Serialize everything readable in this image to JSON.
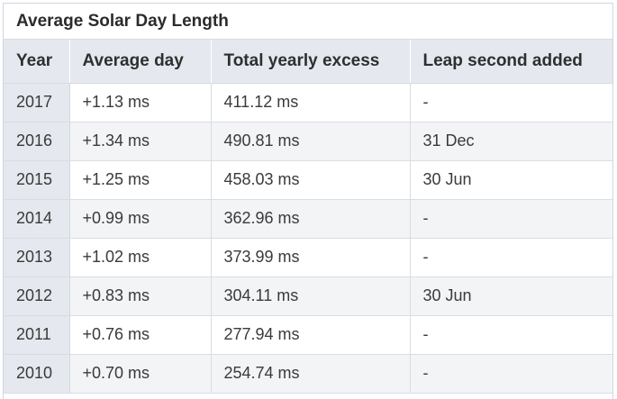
{
  "table": {
    "caption": "Average Solar Day Length",
    "headers": [
      "Year",
      "Average day",
      "Total yearly excess",
      "Leap second added"
    ],
    "rows": [
      [
        "2017",
        "+1.13 ms",
        "411.12 ms",
        "-"
      ],
      [
        "2016",
        "+1.34 ms",
        "490.81 ms",
        "31 Dec"
      ],
      [
        "2015",
        "+1.25 ms",
        "458.03 ms",
        "30 Jun"
      ],
      [
        "2014",
        "+0.99 ms",
        "362.96 ms",
        "-"
      ],
      [
        "2013",
        "+1.02 ms",
        "373.99 ms",
        "-"
      ],
      [
        "2012",
        "+0.83 ms",
        "304.11 ms",
        "30 Jun"
      ],
      [
        "2011",
        "+0.76 ms",
        "277.94 ms",
        "-"
      ],
      [
        "2010",
        "+0.70 ms",
        "254.74 ms",
        "-"
      ]
    ]
  },
  "colors": {
    "header_bg": "#e5e9ef",
    "alt_row_bg": "#f3f4f6",
    "border": "#d9dde3"
  }
}
